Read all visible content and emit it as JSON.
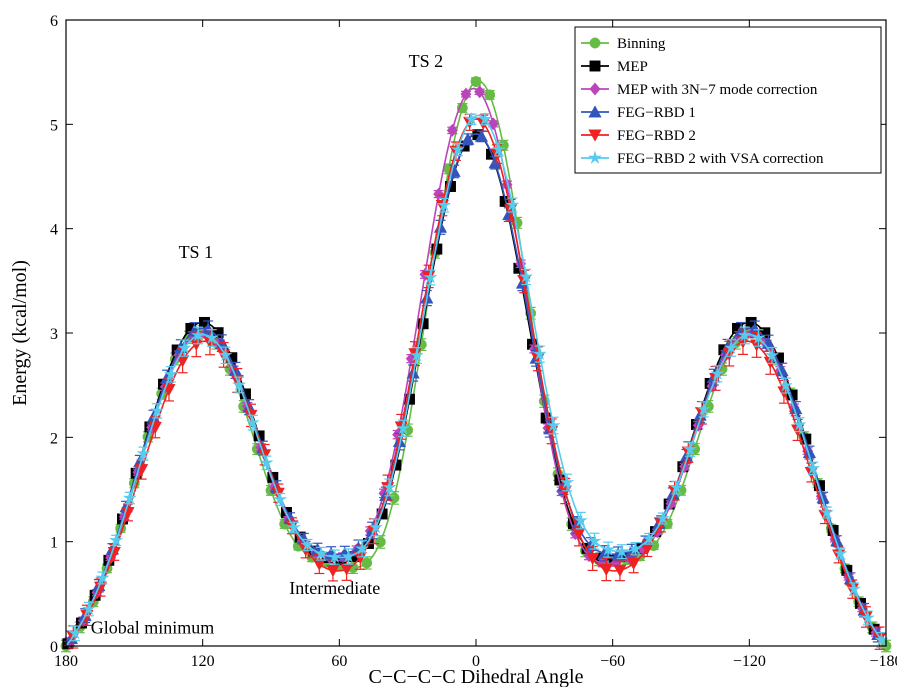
{
  "chart_data": {
    "type": "line",
    "title": "",
    "xlabel": "C−C−C−C Dihedral Angle",
    "ylabel": "Energy (kcal/mol)",
    "xlim": [
      180,
      -180
    ],
    "ylim": [
      0,
      6
    ],
    "x_reversed": true,
    "xticks": [
      180,
      120,
      60,
      0,
      -60,
      -120,
      -180
    ],
    "xtick_labels": [
      "180",
      "120",
      "60",
      "0",
      "−60",
      "−120",
      "−180"
    ],
    "yticks": [
      0,
      1,
      2,
      3,
      4,
      5,
      6
    ],
    "ytick_labels": [
      "0",
      "1",
      "2",
      "3",
      "4",
      "5",
      "6"
    ],
    "grid": false,
    "legend_position": "top-right",
    "annotations": [
      {
        "text": "TS 2",
        "x": 22,
        "y": 5.55
      },
      {
        "text": "TS 1",
        "x": 123,
        "y": 3.72
      },
      {
        "text": "Intermediate",
        "x": 62,
        "y": 0.5
      },
      {
        "text": "Global minimum",
        "x": 142,
        "y": 0.12
      }
    ],
    "series": [
      {
        "name": "Binning",
        "color": "#66bb44",
        "marker": "circle",
        "gauss": [
          [
            121,
            3.32,
            27
          ],
          [
            -1,
            5.72,
            23
          ],
          [
            -121,
            3.32,
            27
          ]
        ],
        "base": [
          0.0,
          0.78
        ],
        "error": 0.06
      },
      {
        "name": "MEP",
        "color": "#000000",
        "marker": "square",
        "gauss": [
          [
            120,
            3.45,
            28
          ],
          [
            0,
            5.25,
            25
          ],
          [
            -120,
            3.45,
            28
          ]
        ],
        "base": [
          0.0,
          0.83
        ],
        "error": 0.0
      },
      {
        "name": "MEP with 3N−7 mode correction",
        "color": "#bb44bb",
        "marker": "diamond",
        "gauss": [
          [
            120,
            3.35,
            28
          ],
          [
            1,
            5.68,
            24.5
          ],
          [
            -120,
            3.35,
            28
          ]
        ],
        "base": [
          0.0,
          0.85
        ],
        "error": 0.04
      },
      {
        "name": "FEG−RBD 1",
        "color": "#3355bb",
        "marker": "triangle-up",
        "gauss": [
          [
            120,
            3.42,
            28.5
          ],
          [
            0,
            5.28,
            25.5
          ],
          [
            -120,
            3.42,
            28.5
          ]
        ],
        "base": [
          0.0,
          0.88
        ],
        "error": 0.08
      },
      {
        "name": "FEG−RBD 2",
        "color": "#ee2222",
        "marker": "triangle-down",
        "gauss": [
          [
            119,
            3.25,
            28.5
          ],
          [
            0,
            5.38,
            25.5
          ],
          [
            -119,
            3.25,
            28.5
          ]
        ],
        "base": [
          0.0,
          0.72
        ],
        "error": 0.12
      },
      {
        "name": "FEG−RBD 2 with VSA correction",
        "color": "#55ccee",
        "marker": "star",
        "gauss": [
          [
            120,
            3.35,
            28.5
          ],
          [
            -1,
            5.45,
            25.5
          ],
          [
            -120,
            3.35,
            28.5
          ]
        ],
        "base": [
          0.0,
          0.85
        ],
        "error": 0.08
      }
    ]
  }
}
